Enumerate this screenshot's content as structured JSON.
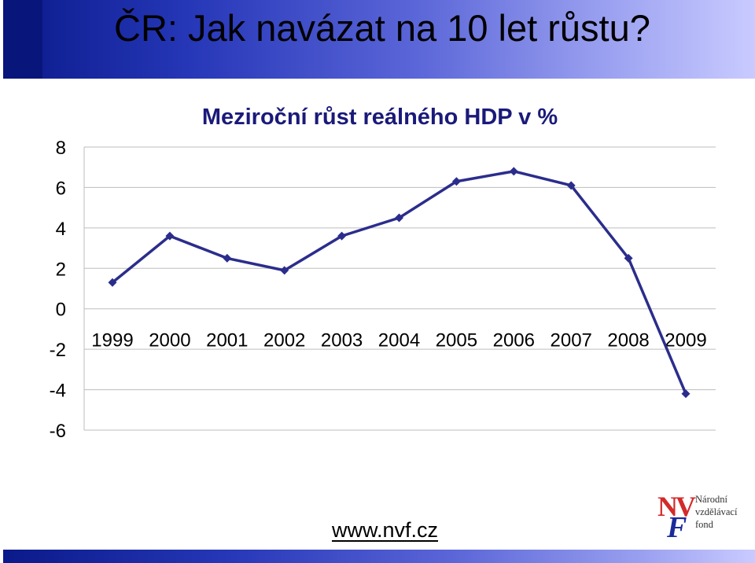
{
  "slide": {
    "title": "ČR: Jak navázat na 10 let růstu?",
    "footer_url": "www.nvf.cz",
    "logo": {
      "mark_nv": "NV",
      "mark_f": "F",
      "line1": "Národní",
      "line2": "vzdělávací",
      "line3": "fond"
    }
  },
  "colors": {
    "header_dark": "#0a1a8a",
    "header_light": "#c9cbff",
    "series_line": "#2b2d8c",
    "gridline": "#bdbdbd"
  },
  "chart_data": {
    "type": "line",
    "title": "Meziroční růst reálného HDP v %",
    "xlabel": "",
    "ylabel": "",
    "categories": [
      "1999",
      "2000",
      "2001",
      "2002",
      "2003",
      "2004",
      "2005",
      "2006",
      "2007",
      "2008",
      "2009"
    ],
    "series": [
      {
        "values": [
          1.3,
          3.6,
          2.5,
          1.9,
          3.6,
          4.5,
          6.3,
          6.8,
          6.1,
          2.5,
          -4.2
        ]
      }
    ],
    "ylim": [
      -6,
      8
    ],
    "yticks": [
      "8",
      "6",
      "4",
      "2",
      "0",
      "-2",
      "-4",
      "-6"
    ],
    "grid": true,
    "marker": "diamond",
    "legend": "none"
  }
}
